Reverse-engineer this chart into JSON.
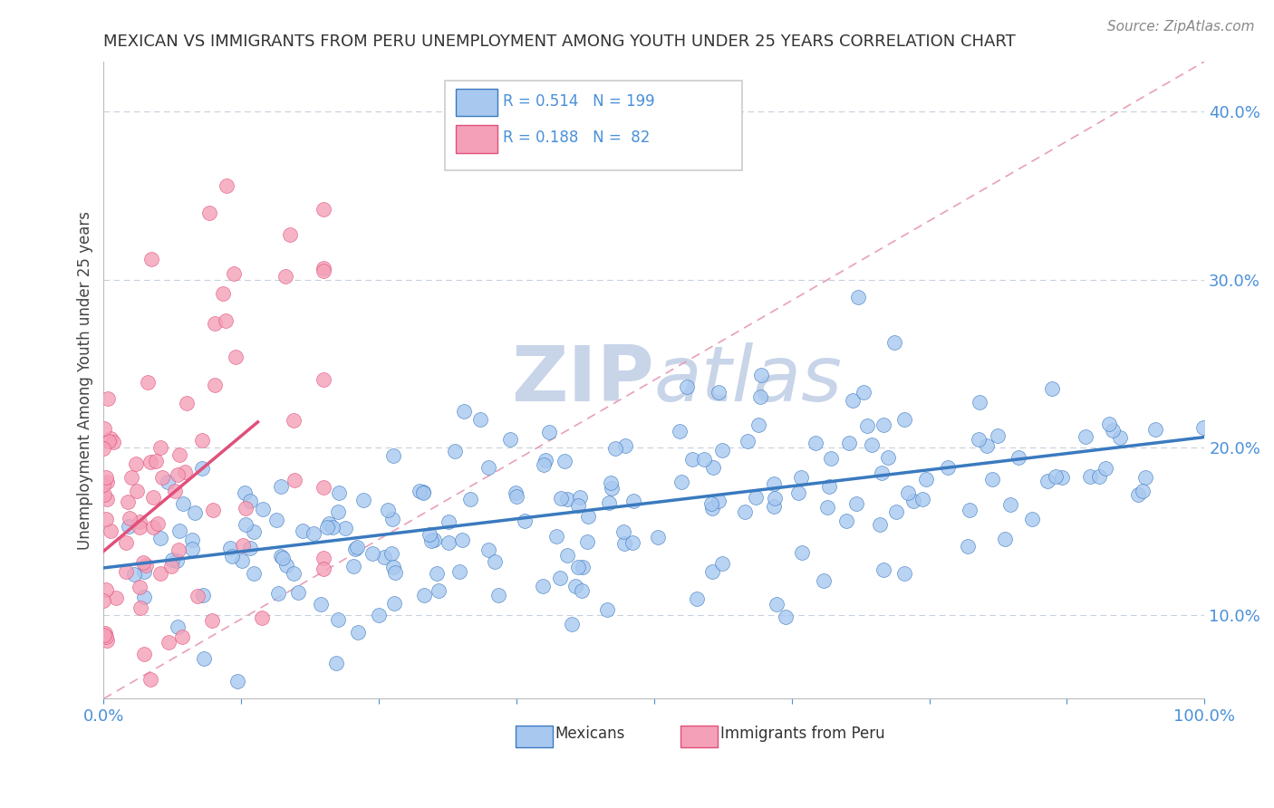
{
  "title": "MEXICAN VS IMMIGRANTS FROM PERU UNEMPLOYMENT AMONG YOUTH UNDER 25 YEARS CORRELATION CHART",
  "source": "Source: ZipAtlas.com",
  "ylabel": "Unemployment Among Youth under 25 years",
  "legend_labels": [
    "Mexicans",
    "Immigrants from Peru"
  ],
  "scatter_color_blue": "#a8c8f0",
  "scatter_color_pink": "#f4a0b8",
  "line_color_blue": "#3a7abf",
  "line_color_pink": "#e0507a",
  "diag_line_color": "#e8a0b8",
  "title_fontsize": 13,
  "source_fontsize": 11,
  "axis_label_color": "#4a90d9",
  "tick_color": "#4a90d9",
  "watermark_color": "#c8d4e8",
  "xlim": [
    0.0,
    1.0
  ],
  "ylim": [
    0.05,
    0.43
  ],
  "yticks": [
    0.1,
    0.2,
    0.3,
    0.4
  ],
  "ytick_labels": [
    "10.0%",
    "20.0%",
    "30.0%",
    "40.0%"
  ],
  "xticks": [
    0.0,
    0.125,
    0.25,
    0.375,
    0.5,
    0.625,
    0.75,
    0.875,
    1.0
  ],
  "xtick_labels": [
    "0.0%",
    "",
    "",
    "",
    "",
    "",
    "",
    "",
    "100.0%"
  ],
  "blue_r": 0.514,
  "blue_n": 199,
  "pink_r": 0.188,
  "pink_n": 82,
  "blue_slope": 0.078,
  "blue_intercept": 0.128,
  "pink_slope": 0.55,
  "pink_intercept": 0.138
}
